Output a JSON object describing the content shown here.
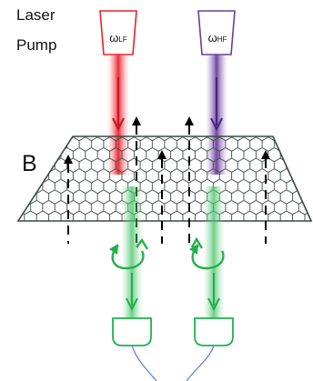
{
  "labels": {
    "laser": "Laser",
    "pump": "Pump",
    "field": "B",
    "omega_lf": {
      "symbol": "ω",
      "subscript": "LF"
    },
    "omega_hf": {
      "symbol": "ω",
      "subscript": "HF"
    }
  },
  "colors": {
    "low_frequency_beam": "#e8222a",
    "high_frequency_beam": "#6a3d9a",
    "emission_beam": "#22b04b",
    "detector": "#22b04b",
    "lattice": "#3a4a45",
    "field_arrows": "#000000",
    "wires": "#5b7fc8"
  },
  "icons": [
    "laser-lf-icon",
    "laser-hf-icon",
    "detector-icon",
    "rotation-arrow-icon",
    "field-arrow-icon"
  ]
}
